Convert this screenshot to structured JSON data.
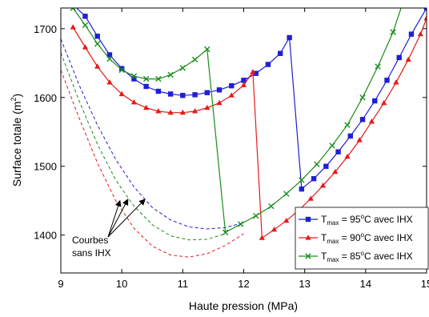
{
  "chart_data": {
    "type": "line",
    "xlabel": "Haute pression (MPa)",
    "ylabel_text": "Surface totale  (m",
    "ylabel_sup": "2",
    "ylabel_close": ")",
    "xlim": [
      9,
      15
    ],
    "ylim": [
      1345,
      1730
    ],
    "xticks": [
      9,
      10,
      11,
      12,
      13,
      14,
      15
    ],
    "yticks": [
      1400,
      1500,
      1600,
      1700
    ],
    "grid": false,
    "legend_position": "bottom-right",
    "series": [
      {
        "name": "T_max = 95°C avec IHX",
        "legend_main": "T",
        "legend_sub": "max",
        "legend_rest": " = 95",
        "legend_sup": "o",
        "legend_tail": "C avec IHX",
        "color": "#1f1fd6",
        "marker": "square",
        "points": [
          [
            9.2,
            1735
          ],
          [
            9.4,
            1718
          ],
          [
            9.6,
            1689
          ],
          [
            9.8,
            1662
          ],
          [
            10.0,
            1642
          ],
          [
            10.2,
            1627
          ],
          [
            10.4,
            1616
          ],
          [
            10.6,
            1609
          ],
          [
            10.8,
            1605
          ],
          [
            11.0,
            1603
          ],
          [
            11.2,
            1604
          ],
          [
            11.4,
            1607
          ],
          [
            11.6,
            1611
          ],
          [
            11.8,
            1617
          ],
          [
            12.0,
            1625
          ],
          [
            12.2,
            1635
          ],
          [
            12.4,
            1648
          ],
          [
            12.6,
            1664
          ],
          [
            12.75,
            1687
          ],
          [
            12.95,
            1467
          ],
          [
            13.15,
            1482
          ],
          [
            13.35,
            1500
          ],
          [
            13.55,
            1521
          ],
          [
            13.75,
            1544
          ],
          [
            13.95,
            1568
          ],
          [
            14.15,
            1595
          ],
          [
            14.35,
            1625
          ],
          [
            14.55,
            1658
          ],
          [
            14.75,
            1692
          ],
          [
            15.0,
            1730
          ]
        ]
      },
      {
        "name": "T_max = 90°C avec IHX",
        "legend_main": "T",
        "legend_sub": "max",
        "legend_rest": " = 90",
        "legend_sup": "o",
        "legend_tail": "C avec IHX",
        "color": "#e51a1a",
        "marker": "triangle",
        "points": [
          [
            9.2,
            1702
          ],
          [
            9.4,
            1673
          ],
          [
            9.6,
            1645
          ],
          [
            9.8,
            1622
          ],
          [
            10.0,
            1605
          ],
          [
            10.2,
            1593
          ],
          [
            10.4,
            1585
          ],
          [
            10.6,
            1580
          ],
          [
            10.8,
            1578
          ],
          [
            11.0,
            1578
          ],
          [
            11.2,
            1580
          ],
          [
            11.4,
            1585
          ],
          [
            11.6,
            1592
          ],
          [
            11.8,
            1603
          ],
          [
            12.0,
            1618
          ],
          [
            12.15,
            1637
          ],
          [
            12.3,
            1396
          ],
          [
            12.5,
            1408
          ],
          [
            12.7,
            1421
          ],
          [
            12.9,
            1436
          ],
          [
            13.1,
            1453
          ],
          [
            13.3,
            1472
          ],
          [
            13.5,
            1492
          ],
          [
            13.7,
            1514
          ],
          [
            13.9,
            1538
          ],
          [
            14.1,
            1565
          ],
          [
            14.3,
            1592
          ],
          [
            14.5,
            1622
          ],
          [
            14.7,
            1655
          ],
          [
            14.9,
            1692
          ],
          [
            15.0,
            1715
          ]
        ]
      },
      {
        "name": "T_max = 85°C avec IHX",
        "legend_main": "T",
        "legend_sub": "max",
        "legend_rest": " = 85",
        "legend_sup": "o",
        "legend_tail": "C avec IHX",
        "color": "#1a8c1a",
        "marker": "x",
        "points": [
          [
            9.2,
            1730
          ],
          [
            9.4,
            1705
          ],
          [
            9.6,
            1678
          ],
          [
            9.8,
            1656
          ],
          [
            10.0,
            1640
          ],
          [
            10.2,
            1631
          ],
          [
            10.4,
            1627
          ],
          [
            10.6,
            1627
          ],
          [
            10.8,
            1633
          ],
          [
            11.0,
            1643
          ],
          [
            11.2,
            1655
          ],
          [
            11.4,
            1670
          ],
          [
            11.7,
            1404
          ],
          [
            11.95,
            1416
          ],
          [
            12.2,
            1428
          ],
          [
            12.45,
            1442
          ],
          [
            12.7,
            1460
          ],
          [
            12.95,
            1480
          ],
          [
            13.2,
            1503
          ],
          [
            13.45,
            1530
          ],
          [
            13.7,
            1560
          ],
          [
            13.95,
            1600
          ],
          [
            14.2,
            1645
          ],
          [
            14.45,
            1695
          ],
          [
            14.6,
            1735
          ]
        ]
      }
    ],
    "dashed_curves": [
      {
        "color": "#1f1fd6",
        "points": [
          [
            9.0,
            1685
          ],
          [
            9.3,
            1618
          ],
          [
            9.6,
            1560
          ],
          [
            9.9,
            1510
          ],
          [
            10.2,
            1470
          ],
          [
            10.5,
            1440
          ],
          [
            10.8,
            1422
          ],
          [
            11.1,
            1412
          ],
          [
            11.4,
            1409
          ],
          [
            11.7,
            1411
          ],
          [
            12.0,
            1418
          ]
        ]
      },
      {
        "color": "#1a8c1a",
        "points": [
          [
            9.0,
            1665
          ],
          [
            9.3,
            1595
          ],
          [
            9.6,
            1532
          ],
          [
            9.9,
            1480
          ],
          [
            10.2,
            1442
          ],
          [
            10.5,
            1415
          ],
          [
            10.8,
            1399
          ],
          [
            11.1,
            1393
          ],
          [
            11.4,
            1394
          ],
          [
            11.7,
            1402
          ]
        ]
      },
      {
        "color": "#e51a1a",
        "points": [
          [
            9.0,
            1640
          ],
          [
            9.3,
            1570
          ],
          [
            9.6,
            1505
          ],
          [
            9.9,
            1450
          ],
          [
            10.2,
            1410
          ],
          [
            10.5,
            1384
          ],
          [
            10.8,
            1371
          ],
          [
            11.1,
            1368
          ],
          [
            11.4,
            1373
          ],
          [
            11.7,
            1385
          ],
          [
            12.0,
            1402
          ]
        ]
      }
    ],
    "annotation": {
      "lines": [
        "Courbes",
        "sans IHX"
      ]
    }
  }
}
